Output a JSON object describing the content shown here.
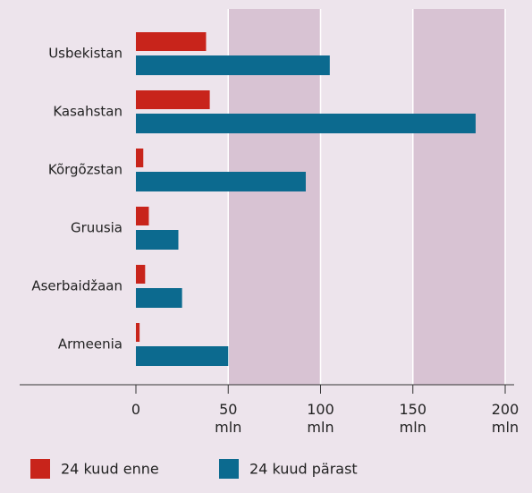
{
  "chart_data": {
    "type": "bar",
    "orientation": "horizontal",
    "categories": [
      "Usbekistan",
      "Kasahstan",
      "Kõrgõzstan",
      "Gruusia",
      "Aserbaidžaan",
      "Armeenia"
    ],
    "series": [
      {
        "name": "24 kuud enne",
        "color": "#c8241b",
        "values": [
          38,
          40,
          4,
          7,
          5,
          2
        ]
      },
      {
        "name": "24 kuud pärast",
        "color": "#0c6a8f",
        "values": [
          105,
          184,
          92,
          23,
          25,
          50
        ]
      }
    ],
    "xlim": [
      0,
      200
    ],
    "xticks": [
      0,
      {
        "value": 50,
        "label": "50 mln"
      },
      {
        "value": 100,
        "label": "100 mln"
      },
      {
        "value": 150,
        "label": "150 mln"
      },
      {
        "value": 200,
        "label": "200 mln"
      }
    ],
    "alternating_bands": true,
    "legend": "bottom"
  }
}
